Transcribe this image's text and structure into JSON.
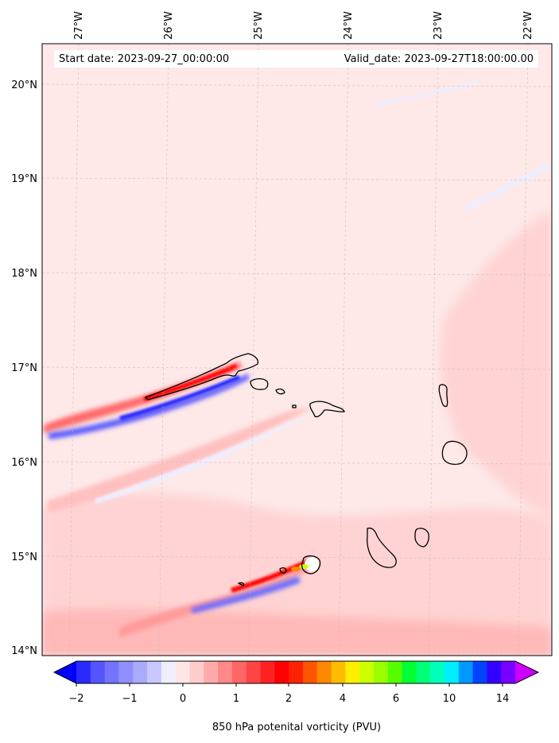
{
  "map": {
    "start_date": "Start date: 2023-09-27_00:00:00",
    "valid_date": "Valid_date: 2023-09-27T18:00:00.00",
    "lon_ticks": [
      "27°W",
      "26°W",
      "25°W",
      "24°W",
      "23°W",
      "22°W"
    ],
    "lat_ticks": [
      "20°N",
      "19°N",
      "18°N",
      "17°N",
      "16°N",
      "15°N",
      "14°N"
    ],
    "background_color": "#fee8e8",
    "islands": [
      "Santo Antão",
      "São Vicente",
      "Santa Luzia",
      "São Nicolau",
      "Sal",
      "Boa Vista",
      "Maio",
      "Santiago"
    ]
  },
  "colorbar": {
    "label": "850 hPa potenital vorticity (PVU)",
    "tick_labels": [
      "−2",
      "−1",
      "0",
      "1",
      "2",
      "4",
      "6",
      "10",
      "14"
    ],
    "colors": [
      "#0000ff",
      "#2a2aff",
      "#5555ff",
      "#7373ff",
      "#8f8fff",
      "#aaaaff",
      "#c8c8ff",
      "#eeeeff",
      "#ffe6e6",
      "#ffcccc",
      "#ffaaaa",
      "#ff8888",
      "#ff6666",
      "#ff4444",
      "#ff2222",
      "#ff0000",
      "#ff2200",
      "#ff5500",
      "#ff8800",
      "#ffbb00",
      "#ffee00",
      "#ccff00",
      "#99ff00",
      "#55ff00",
      "#00ff33",
      "#00ff77",
      "#00ffbb",
      "#00eeff",
      "#0099ff",
      "#0044ff",
      "#3300ff",
      "#7700ff",
      "#cc00ff"
    ]
  }
}
